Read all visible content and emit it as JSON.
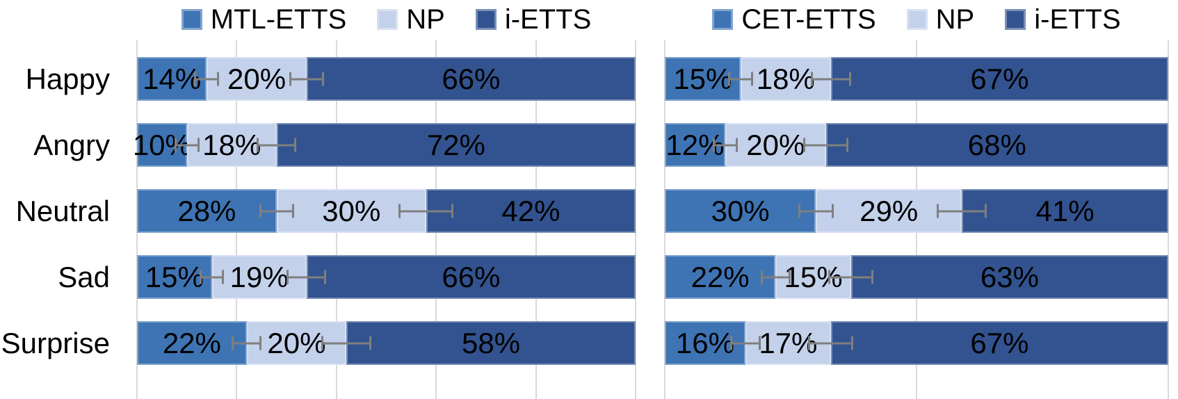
{
  "colors": {
    "series": [
      "#3E74B4",
      "#C3D1EB",
      "#32538F"
    ],
    "gridline": "#D9D9D9",
    "error_bar": "#7F7F7F",
    "text": "#000000",
    "background": "#FFFFFF"
  },
  "chart_data": [
    {
      "type": "bar",
      "orientation": "horizontal",
      "stacked": true,
      "value_format": "percent",
      "xlim": [
        0,
        100
      ],
      "gridline_interval_pct": 20,
      "grid": "vertical",
      "legend_position": "top",
      "categories": [
        "Happy",
        "Angry",
        "Neutral",
        "Sad",
        "Surprise"
      ],
      "series": [
        {
          "name": "MTL-ETTS",
          "values": [
            14,
            10,
            28,
            15,
            22
          ]
        },
        {
          "name": "NP",
          "values": [
            20,
            18,
            30,
            19,
            20
          ]
        },
        {
          "name": "i-ETTS",
          "values": [
            66,
            72,
            42,
            66,
            58
          ]
        }
      ],
      "data_labels": [
        [
          "14%",
          "20%",
          "66%"
        ],
        [
          "10%",
          "18%",
          "72%"
        ],
        [
          "28%",
          "30%",
          "42%"
        ],
        [
          "15%",
          "19%",
          "66%"
        ],
        [
          "22%",
          "20%",
          "58%"
        ]
      ],
      "error_bars_half_width_pct": [
        [
          2.5,
          3.5
        ],
        [
          2.5,
          4.0
        ],
        [
          3.5,
          5.5
        ],
        [
          2.5,
          4.0
        ],
        [
          3.0,
          5.0
        ]
      ]
    },
    {
      "type": "bar",
      "orientation": "horizontal",
      "stacked": true,
      "value_format": "percent",
      "xlim": [
        0,
        100
      ],
      "gridline_interval_pct": 50,
      "grid": "vertical",
      "legend_position": "top",
      "categories": [
        "Happy",
        "Angry",
        "Neutral",
        "Sad",
        "Surprise"
      ],
      "series": [
        {
          "name": "CET-ETTS",
          "values": [
            15,
            12,
            30,
            22,
            16
          ]
        },
        {
          "name": "NP",
          "values": [
            18,
            20,
            29,
            15,
            17
          ]
        },
        {
          "name": "i-ETTS",
          "values": [
            67,
            68,
            41,
            63,
            67
          ]
        }
      ],
      "data_labels": [
        [
          "15%",
          "18%",
          "67%"
        ],
        [
          "12%",
          "20%",
          "68%"
        ],
        [
          "30%",
          "29%",
          "41%"
        ],
        [
          "22%",
          "15%",
          "63%"
        ],
        [
          "16%",
          "17%",
          "67%"
        ]
      ],
      "error_bars_half_width_pct": [
        [
          2.5,
          4.0
        ],
        [
          2.5,
          4.5
        ],
        [
          3.5,
          5.0
        ],
        [
          3.0,
          4.5
        ],
        [
          3.0,
          4.5
        ]
      ]
    }
  ]
}
